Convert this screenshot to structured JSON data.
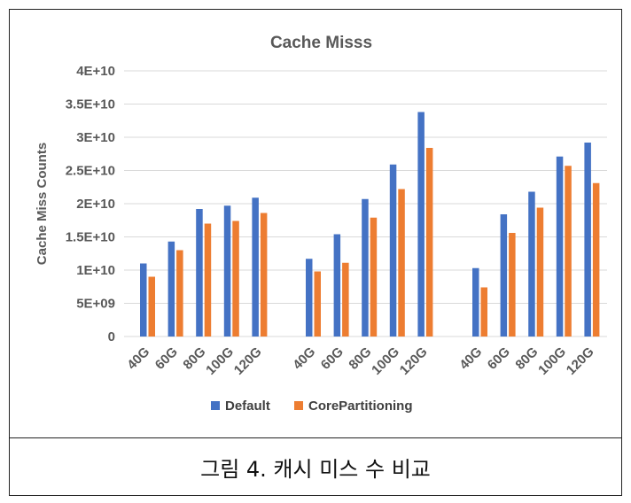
{
  "chart_data": {
    "type": "bar",
    "title": "Cache Misss",
    "ylabel": "Cache Miss Counts",
    "xlabel": "",
    "ylim": [
      0,
      40000000000
    ],
    "yticks": [
      "0",
      "5E+09",
      "1E+10",
      "1.5E+10",
      "2E+10",
      "2.5E+10",
      "3E+10",
      "3.5E+10",
      "4E+10"
    ],
    "grid": true,
    "legend_position": "bottom",
    "groups": [
      {
        "categories": [
          "40G",
          "60G",
          "80G",
          "100G",
          "120G"
        ],
        "series": [
          {
            "name": "Default",
            "values": [
              11000000000,
              14300000000,
              19200000000,
              19700000000,
              20900000000
            ]
          },
          {
            "name": "CorePartitioning",
            "values": [
              9000000000,
              13000000000,
              17000000000,
              17400000000,
              18600000000
            ]
          }
        ]
      },
      {
        "categories": [
          "40G",
          "60G",
          "80G",
          "100G",
          "120G"
        ],
        "series": [
          {
            "name": "Default",
            "values": [
              11700000000,
              15400000000,
              20700000000,
              25900000000,
              33800000000
            ]
          },
          {
            "name": "CorePartitioning",
            "values": [
              9800000000,
              11100000000,
              17900000000,
              22200000000,
              28400000000
            ]
          }
        ]
      },
      {
        "categories": [
          "40G",
          "60G",
          "80G",
          "100G",
          "120G"
        ],
        "series": [
          {
            "name": "Default",
            "values": [
              10300000000,
              18400000000,
              21800000000,
              27100000000,
              29200000000
            ]
          },
          {
            "name": "CorePartitioning",
            "values": [
              7400000000,
              15600000000,
              19400000000,
              25700000000,
              23100000000
            ]
          }
        ]
      }
    ],
    "legend": [
      "Default",
      "CorePartitioning"
    ],
    "colors": {
      "Default": "#4472c4",
      "CorePartitioning": "#ed7d31"
    }
  },
  "caption": "그림 4. 캐시 미스 수 비교"
}
